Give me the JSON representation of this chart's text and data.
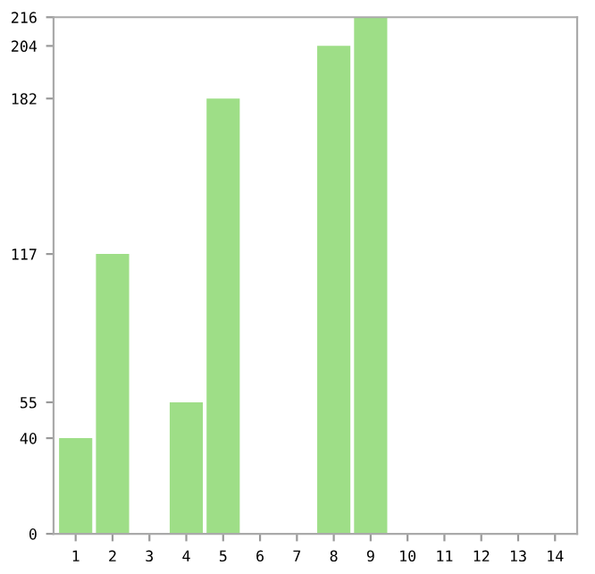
{
  "chart_data": {
    "type": "bar",
    "categories": [
      "1",
      "2",
      "3",
      "4",
      "5",
      "6",
      "7",
      "8",
      "9",
      "10",
      "11",
      "12",
      "13",
      "14"
    ],
    "values": [
      40,
      117,
      0,
      55,
      182,
      0,
      0,
      204,
      216,
      0,
      0,
      0,
      0,
      0
    ],
    "color": "#9ede87",
    "ylim": [
      0,
      216
    ],
    "yticks": [
      0,
      40,
      55,
      117,
      182,
      204,
      216
    ],
    "grid": false
  }
}
